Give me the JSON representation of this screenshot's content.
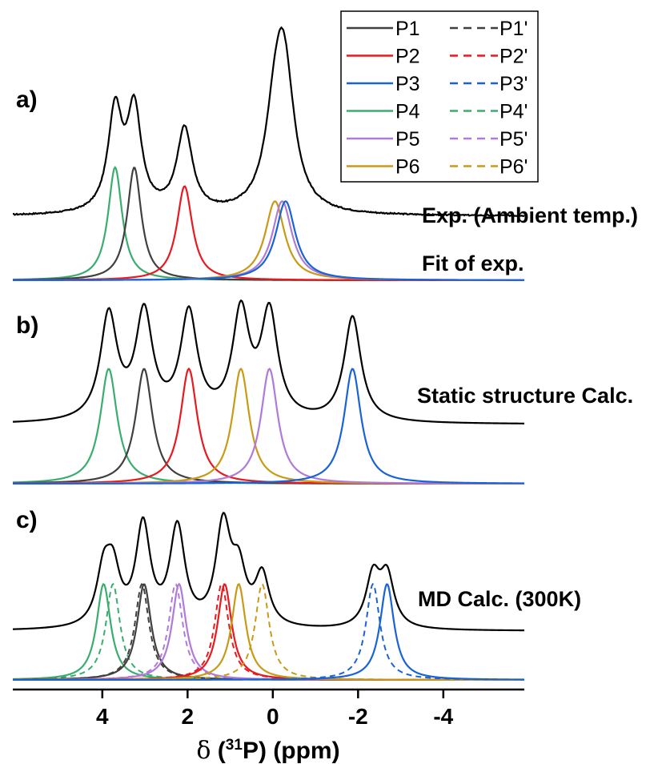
{
  "chart_data": {
    "type": "line",
    "x_unit": "ppm",
    "xlim": [
      6.1,
      -5.9
    ],
    "x_reversed": true,
    "x_ticks": [
      4,
      2,
      0,
      -2,
      -4
    ],
    "x_tick_labels": [
      "4",
      "2",
      "0",
      "-2",
      "-4"
    ],
    "xlabel": {
      "delta": "δ",
      "open": " (",
      "sup": "31",
      "nucleus": "P",
      "unit": ") (ppm)"
    },
    "legend": {
      "placement": "top-right",
      "entries": [
        {
          "name": "P1",
          "prime": "P1'",
          "color": "#404040"
        },
        {
          "name": "P2",
          "prime": "P2'",
          "color": "#e8191f"
        },
        {
          "name": "P3",
          "prime": "P3'",
          "color": "#1a63d6"
        },
        {
          "name": "P4",
          "prime": "P4'",
          "color": "#3aad6e"
        },
        {
          "name": "P5",
          "prime": "P5'",
          "color": "#b07ad8"
        },
        {
          "name": "P6",
          "prime": "P6'",
          "color": "#c89a16"
        }
      ]
    },
    "panels": [
      {
        "label": "a)",
        "annotations": [
          "Exp. (Ambient temp.)",
          "Fit of exp."
        ],
        "sum_name": "Exp. (Ambient temp.)",
        "sum_height": 1.0,
        "components": [
          {
            "name": "P4",
            "style": "solid",
            "center": 3.7,
            "width": 0.2,
            "height": 0.6
          },
          {
            "name": "P1",
            "style": "solid",
            "center": 3.25,
            "width": 0.2,
            "height": 0.6
          },
          {
            "name": "P2",
            "style": "solid",
            "center": 2.07,
            "width": 0.22,
            "height": 0.5
          },
          {
            "name": "P6",
            "style": "solid",
            "center": -0.05,
            "width": 0.28,
            "height": 0.42
          },
          {
            "name": "P5",
            "style": "solid",
            "center": -0.22,
            "width": 0.28,
            "height": 0.42
          },
          {
            "name": "P3",
            "style": "solid",
            "center": -0.3,
            "width": 0.28,
            "height": 0.42
          }
        ]
      },
      {
        "label": "b)",
        "annotations": [
          "Static structure Calc."
        ],
        "sum_height": 0.72,
        "components": [
          {
            "name": "P4",
            "style": "solid",
            "center": 3.85,
            "width": 0.24,
            "height": 0.7
          },
          {
            "name": "P1",
            "style": "solid",
            "center": 3.02,
            "width": 0.24,
            "height": 0.7
          },
          {
            "name": "P2",
            "style": "solid",
            "center": 1.97,
            "width": 0.24,
            "height": 0.7
          },
          {
            "name": "P6",
            "style": "solid",
            "center": 0.75,
            "width": 0.24,
            "height": 0.7
          },
          {
            "name": "P5",
            "style": "solid",
            "center": 0.08,
            "width": 0.24,
            "height": 0.7
          },
          {
            "name": "P3",
            "style": "solid",
            "center": -1.87,
            "width": 0.24,
            "height": 0.7
          }
        ]
      },
      {
        "label": "c)",
        "annotations": [
          "MD Calc. (300K)"
        ],
        "sum_height": 0.72,
        "components": [
          {
            "name": "P4",
            "style": "solid",
            "center": 3.97,
            "width": 0.2,
            "height": 0.63
          },
          {
            "name": "P4'",
            "style": "dashed",
            "center": 3.75,
            "width": 0.2,
            "height": 0.63
          },
          {
            "name": "P1",
            "style": "solid",
            "center": 3.02,
            "width": 0.2,
            "height": 0.63
          },
          {
            "name": "P1'",
            "style": "dashed",
            "center": 3.07,
            "width": 0.2,
            "height": 0.63
          },
          {
            "name": "P5",
            "style": "solid",
            "center": 2.2,
            "width": 0.2,
            "height": 0.63
          },
          {
            "name": "P5'",
            "style": "dashed",
            "center": 2.28,
            "width": 0.2,
            "height": 0.63
          },
          {
            "name": "P2",
            "style": "solid",
            "center": 1.13,
            "width": 0.2,
            "height": 0.63
          },
          {
            "name": "P2'",
            "style": "dashed",
            "center": 1.2,
            "width": 0.2,
            "height": 0.63
          },
          {
            "name": "P6",
            "style": "solid",
            "center": 0.8,
            "width": 0.2,
            "height": 0.63
          },
          {
            "name": "P6'",
            "style": "dashed",
            "center": 0.25,
            "width": 0.2,
            "height": 0.63
          },
          {
            "name": "P3'",
            "style": "dashed",
            "center": -2.35,
            "width": 0.2,
            "height": 0.63
          },
          {
            "name": "P3",
            "style": "solid",
            "center": -2.68,
            "width": 0.2,
            "height": 0.63
          }
        ]
      }
    ]
  }
}
